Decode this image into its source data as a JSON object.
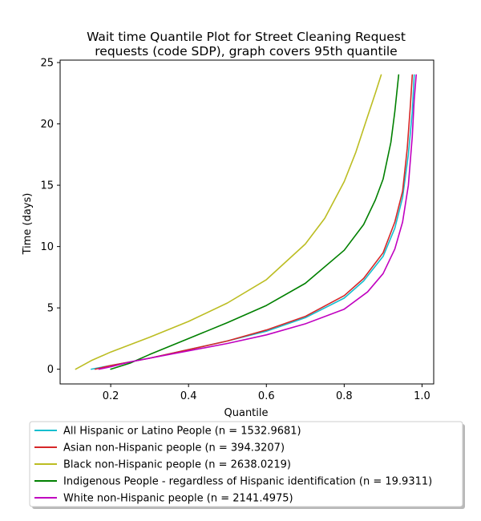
{
  "chart_data": {
    "type": "line",
    "title": "Wait time Quantile Plot for Street Cleaning Request",
    "subtitle": "requests (code SDP), graph covers 95th quantile",
    "xlabel": "Quantile",
    "ylabel": "Time (days)",
    "xlim": [
      0.07,
      1.03
    ],
    "ylim": [
      -1.2,
      25.2
    ],
    "xticks": [
      0.2,
      0.4,
      0.6,
      0.8,
      1.0
    ],
    "xtick_labels": [
      "0.2",
      "0.4",
      "0.6",
      "0.8",
      "1.0"
    ],
    "yticks": [
      0,
      5,
      10,
      15,
      20,
      25
    ],
    "ytick_labels": [
      "0",
      "5",
      "10",
      "15",
      "20",
      "25"
    ],
    "grid": false,
    "legend_position": "below",
    "series": [
      {
        "name": "All Hispanic or Latino People (n = 1532.9681)",
        "color": "#17becf",
        "points": [
          [
            0.15,
            0.0
          ],
          [
            0.2,
            0.3
          ],
          [
            0.25,
            0.6
          ],
          [
            0.3,
            0.9
          ],
          [
            0.4,
            1.6
          ],
          [
            0.5,
            2.3
          ],
          [
            0.6,
            3.1
          ],
          [
            0.7,
            4.2
          ],
          [
            0.8,
            5.8
          ],
          [
            0.85,
            7.2
          ],
          [
            0.9,
            9.2
          ],
          [
            0.93,
            11.5
          ],
          [
            0.95,
            14.0
          ],
          [
            0.965,
            17.5
          ],
          [
            0.975,
            21.0
          ],
          [
            0.98,
            24.0
          ]
        ]
      },
      {
        "name": "Asian non-Hispanic people (n = 394.3207)",
        "color": "#d62728",
        "points": [
          [
            0.16,
            0.0
          ],
          [
            0.2,
            0.3
          ],
          [
            0.25,
            0.6
          ],
          [
            0.3,
            0.9
          ],
          [
            0.4,
            1.6
          ],
          [
            0.5,
            2.3
          ],
          [
            0.6,
            3.2
          ],
          [
            0.7,
            4.3
          ],
          [
            0.8,
            6.0
          ],
          [
            0.85,
            7.4
          ],
          [
            0.9,
            9.5
          ],
          [
            0.93,
            12.0
          ],
          [
            0.95,
            14.5
          ],
          [
            0.962,
            18.0
          ],
          [
            0.97,
            21.5
          ],
          [
            0.975,
            24.0
          ]
        ]
      },
      {
        "name": "Black non-Hispanic people (n = 2638.0219)",
        "color": "#bcbd22",
        "points": [
          [
            0.11,
            0.0
          ],
          [
            0.15,
            0.7
          ],
          [
            0.2,
            1.4
          ],
          [
            0.3,
            2.6
          ],
          [
            0.4,
            3.9
          ],
          [
            0.5,
            5.4
          ],
          [
            0.6,
            7.3
          ],
          [
            0.7,
            10.2
          ],
          [
            0.75,
            12.3
          ],
          [
            0.8,
            15.3
          ],
          [
            0.83,
            17.7
          ],
          [
            0.86,
            20.6
          ],
          [
            0.88,
            22.5
          ],
          [
            0.895,
            24.0
          ]
        ]
      },
      {
        "name": "Indigenous People - regardless of Hispanic identification (n = 19.9311)",
        "color": "#008000",
        "points": [
          [
            0.2,
            0.0
          ],
          [
            0.25,
            0.5
          ],
          [
            0.3,
            1.2
          ],
          [
            0.4,
            2.5
          ],
          [
            0.5,
            3.8
          ],
          [
            0.6,
            5.2
          ],
          [
            0.7,
            7.0
          ],
          [
            0.8,
            9.7
          ],
          [
            0.85,
            11.8
          ],
          [
            0.88,
            13.8
          ],
          [
            0.9,
            15.5
          ],
          [
            0.92,
            18.5
          ],
          [
            0.93,
            21.0
          ],
          [
            0.94,
            24.0
          ]
        ]
      },
      {
        "name": "White non-Hispanic people (n = 2141.4975)",
        "color": "#c000c0",
        "points": [
          [
            0.17,
            0.0
          ],
          [
            0.2,
            0.2
          ],
          [
            0.25,
            0.6
          ],
          [
            0.3,
            0.9
          ],
          [
            0.4,
            1.5
          ],
          [
            0.5,
            2.1
          ],
          [
            0.6,
            2.8
          ],
          [
            0.7,
            3.7
          ],
          [
            0.8,
            4.9
          ],
          [
            0.86,
            6.3
          ],
          [
            0.9,
            7.8
          ],
          [
            0.93,
            9.8
          ],
          [
            0.95,
            12.0
          ],
          [
            0.965,
            15.0
          ],
          [
            0.975,
            19.0
          ],
          [
            0.98,
            22.0
          ],
          [
            0.985,
            24.0
          ]
        ]
      }
    ]
  }
}
